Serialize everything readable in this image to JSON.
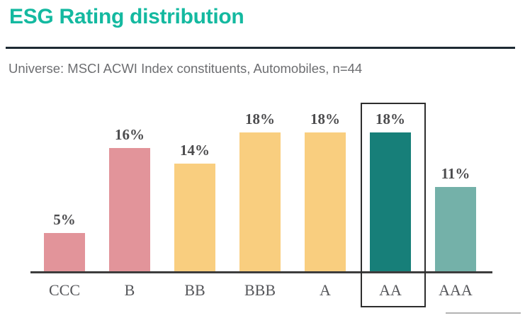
{
  "header": {
    "title": "ESG Rating distribution",
    "subtitle": "Universe: MSCI ACWI Index constituents, Automobiles, n=44"
  },
  "colors": {
    "title_text": "#14b9a0",
    "title_rule": "#1e2a33",
    "subtitle_text": "#6d6e71",
    "axis_line": "#3d3d3d",
    "value_label_text": "#4c4c4e",
    "category_label_text": "#55565a",
    "highlight_box_border": "#2e2e2e",
    "footer_line": "#b3b3b3",
    "bar_pink": "#e2949a",
    "bar_yellow": "#f9ce7f",
    "bar_teal_dark": "#177f79",
    "bar_teal_light": "#74b1a9"
  },
  "chart_data": {
    "type": "bar",
    "title": "ESG Rating distribution",
    "subtitle": "Universe: MSCI ACWI Index constituents, Automobiles, n=44",
    "categories": [
      "CCC",
      "B",
      "BB",
      "BBB",
      "A",
      "AA",
      "AAA"
    ],
    "values": [
      5,
      16,
      14,
      18,
      18,
      18,
      11
    ],
    "value_labels": [
      "5%",
      "16%",
      "14%",
      "18%",
      "18%",
      "18%",
      "11%"
    ],
    "bar_colors": [
      "#e2949a",
      "#e2949a",
      "#f9ce7f",
      "#f9ce7f",
      "#f9ce7f",
      "#177f79",
      "#74b1a9"
    ],
    "highlighted_category": "AA",
    "xlabel": "",
    "ylabel": "",
    "ylim": [
      0,
      20
    ],
    "grid": false,
    "legend": null,
    "data_labels_shown": true
  }
}
